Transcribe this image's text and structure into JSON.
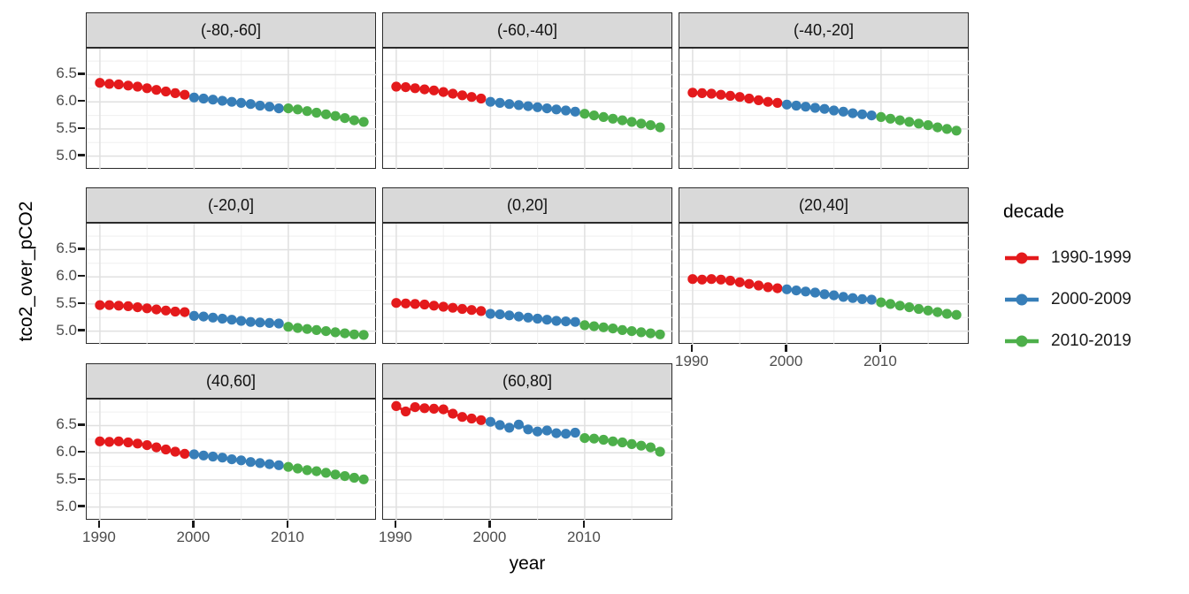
{
  "chart_data": {
    "type": "line",
    "xlabel": "year",
    "ylabel": "tco2_over_pCO2",
    "legend_title": "decade",
    "legend_position": "right",
    "grid": true,
    "xlim": [
      1988.6,
      2019.4
    ],
    "ylim": [
      4.75,
      6.98
    ],
    "xticks": [
      1990,
      2000,
      2010
    ],
    "yticks": [
      6.5,
      6.0,
      5.5,
      5.0
    ],
    "x_minor": [
      1995,
      2005,
      2015
    ],
    "y_minor": [
      6.75,
      6.25,
      5.75,
      5.25
    ],
    "series": [
      {
        "name": "1990-1999",
        "color": "#E41A1C",
        "years": [
          1990,
          1991,
          1992,
          1993,
          1994,
          1995,
          1996,
          1997,
          1998,
          1999
        ]
      },
      {
        "name": "2000-2009",
        "color": "#377EB8",
        "years": [
          2000,
          2001,
          2002,
          2003,
          2004,
          2005,
          2006,
          2007,
          2008,
          2009
        ]
      },
      {
        "name": "2010-2019",
        "color": "#4DAF4A",
        "years": [
          2010,
          2011,
          2012,
          2013,
          2014,
          2015,
          2016,
          2017,
          2018
        ]
      }
    ],
    "facets": [
      {
        "label": "(-80,-60]",
        "values": [
          [
            6.35,
            6.33,
            6.32,
            6.3,
            6.28,
            6.25,
            6.22,
            6.19,
            6.16,
            6.13
          ],
          [
            6.08,
            6.06,
            6.04,
            6.02,
            6.0,
            5.98,
            5.96,
            5.93,
            5.91,
            5.88
          ],
          [
            5.88,
            5.86,
            5.83,
            5.8,
            5.77,
            5.74,
            5.7,
            5.66,
            5.63
          ]
        ]
      },
      {
        "label": "(-60,-40]",
        "values": [
          [
            6.28,
            6.27,
            6.25,
            6.23,
            6.21,
            6.18,
            6.15,
            6.12,
            6.09,
            6.06
          ],
          [
            6.0,
            5.98,
            5.96,
            5.94,
            5.92,
            5.9,
            5.88,
            5.86,
            5.84,
            5.82
          ],
          [
            5.78,
            5.75,
            5.72,
            5.69,
            5.66,
            5.63,
            5.6,
            5.57,
            5.53
          ]
        ]
      },
      {
        "label": "(-40,-20]",
        "values": [
          [
            6.17,
            6.16,
            6.15,
            6.13,
            6.11,
            6.09,
            6.06,
            6.03,
            6.0,
            5.98
          ],
          [
            5.95,
            5.93,
            5.91,
            5.89,
            5.87,
            5.84,
            5.82,
            5.79,
            5.77,
            5.75
          ],
          [
            5.72,
            5.69,
            5.66,
            5.63,
            5.6,
            5.57,
            5.53,
            5.5,
            5.47
          ]
        ]
      },
      {
        "label": "(-20,0]",
        "values": [
          [
            5.48,
            5.48,
            5.47,
            5.46,
            5.44,
            5.42,
            5.4,
            5.38,
            5.36,
            5.35
          ],
          [
            5.28,
            5.27,
            5.25,
            5.23,
            5.21,
            5.19,
            5.17,
            5.16,
            5.15,
            5.14
          ],
          [
            5.08,
            5.06,
            5.04,
            5.02,
            5.0,
            4.98,
            4.96,
            4.94,
            4.93
          ]
        ]
      },
      {
        "label": "(0,20]",
        "values": [
          [
            5.52,
            5.51,
            5.5,
            5.49,
            5.47,
            5.45,
            5.43,
            5.41,
            5.39,
            5.37
          ],
          [
            5.32,
            5.31,
            5.29,
            5.27,
            5.25,
            5.23,
            5.21,
            5.19,
            5.18,
            5.17
          ],
          [
            5.11,
            5.09,
            5.07,
            5.05,
            5.02,
            5.0,
            4.98,
            4.96,
            4.94
          ]
        ]
      },
      {
        "label": "(20,40]",
        "values": [
          [
            5.96,
            5.95,
            5.96,
            5.95,
            5.93,
            5.9,
            5.87,
            5.84,
            5.81,
            5.79
          ],
          [
            5.77,
            5.75,
            5.73,
            5.71,
            5.68,
            5.66,
            5.63,
            5.61,
            5.59,
            5.58
          ],
          [
            5.53,
            5.5,
            5.47,
            5.44,
            5.41,
            5.38,
            5.35,
            5.32,
            5.3
          ]
        ]
      },
      {
        "label": "(40,60]",
        "values": [
          [
            6.21,
            6.2,
            6.21,
            6.19,
            6.17,
            6.14,
            6.1,
            6.06,
            6.02,
            5.98
          ],
          [
            5.97,
            5.95,
            5.93,
            5.91,
            5.88,
            5.86,
            5.83,
            5.81,
            5.79,
            5.77
          ],
          [
            5.74,
            5.71,
            5.68,
            5.66,
            5.63,
            5.6,
            5.57,
            5.54,
            5.51
          ]
        ]
      },
      {
        "label": "(60,80]",
        "values": [
          [
            6.86,
            6.76,
            6.84,
            6.82,
            6.81,
            6.8,
            6.72,
            6.66,
            6.63,
            6.6
          ],
          [
            6.57,
            6.51,
            6.46,
            6.52,
            6.43,
            6.39,
            6.41,
            6.36,
            6.35,
            6.37
          ],
          [
            6.27,
            6.26,
            6.24,
            6.21,
            6.19,
            6.16,
            6.13,
            6.1,
            6.02
          ]
        ]
      }
    ]
  },
  "colors": {
    "strip_bg": "#d9d9d9",
    "panel_border": "#2b2b2b",
    "grid_major": "#e0e0e0",
    "grid_minor": "#efefef",
    "tick_label": "#4d4d4d",
    "tick_mark": "#1a1a1a",
    "red": "#E41A1C",
    "blue": "#377EB8",
    "green": "#4DAF4A"
  }
}
